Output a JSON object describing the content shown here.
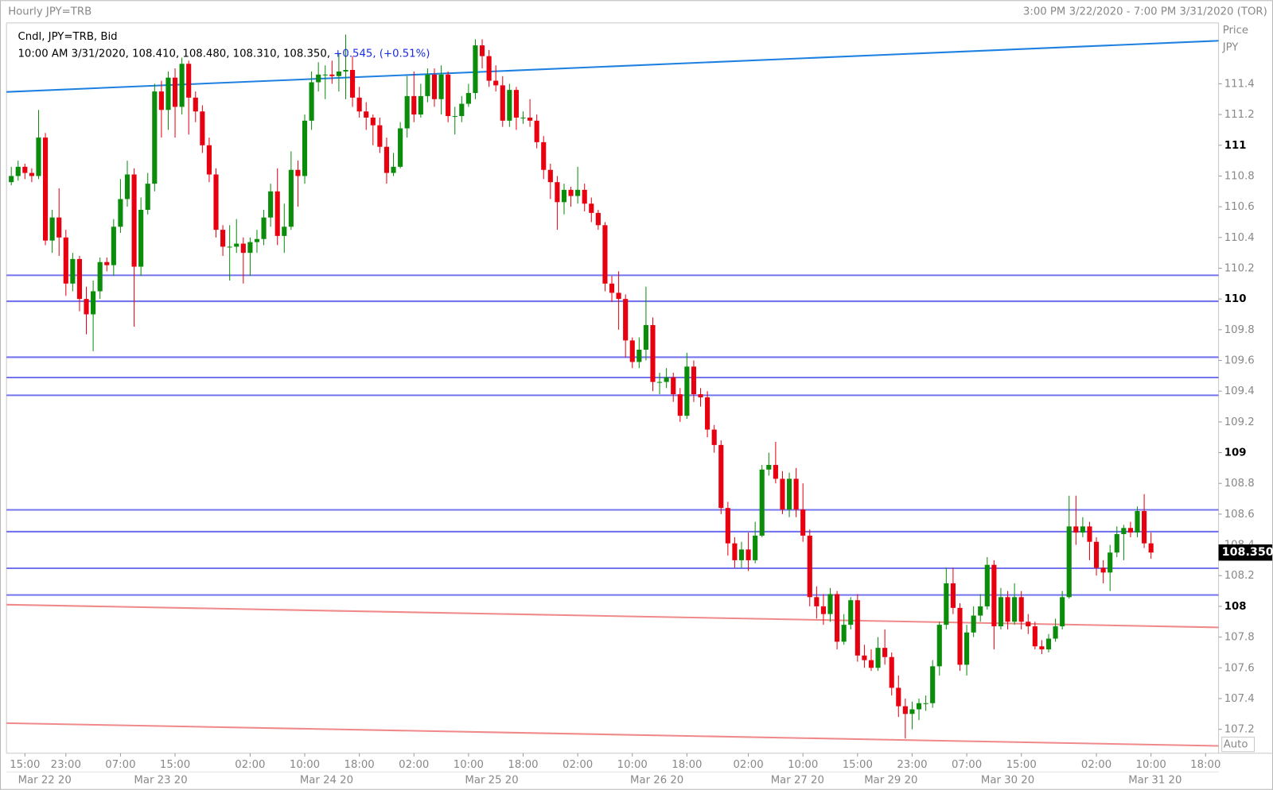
{
  "header": {
    "title": "Hourly JPY=TRB",
    "range": "3:00 PM 3/22/2020 - 7:00 PM 3/31/2020 (TOR)"
  },
  "chart_data": {
    "type": "candlestick",
    "legend": {
      "line1": "Cndl, JPY=TRB, Bid",
      "line2": "10:00 AM 3/31/2020, 108.410, 108.480, 108.310, 108.350,",
      "change": "+0.545, (+0.51%)"
    },
    "axis_title": "Price",
    "axis_unit": "JPY",
    "scale_mode": "Auto",
    "up_color": "#0b8c0b",
    "down_color": "#e80010",
    "xlim": [
      -0.7,
      176.9
    ],
    "ylim": [
      107.044,
      111.796
    ],
    "yticks": [
      107.2,
      107.4,
      107.6,
      107.8,
      108,
      108.2,
      108.4,
      108.6,
      108.8,
      109,
      109.2,
      109.4,
      109.6,
      109.8,
      110,
      110.2,
      110.4,
      110.6,
      110.8,
      111,
      111.2,
      111.4
    ],
    "xticks": [
      {
        "value": 2,
        "label": "15:00"
      },
      {
        "value": 8,
        "label": "23:00"
      },
      {
        "value": 16,
        "label": "07:00"
      },
      {
        "value": 24,
        "label": "15:00"
      },
      {
        "value": 35,
        "label": "02:00"
      },
      {
        "value": 43,
        "label": "10:00"
      },
      {
        "value": 51,
        "label": "18:00"
      },
      {
        "value": 59,
        "label": "02:00"
      },
      {
        "value": 67,
        "label": "10:00"
      },
      {
        "value": 75,
        "label": "18:00"
      },
      {
        "value": 83,
        "label": "02:00"
      },
      {
        "value": 91,
        "label": "10:00"
      },
      {
        "value": 99,
        "label": "18:00"
      },
      {
        "value": 108,
        "label": "02:00"
      },
      {
        "value": 116,
        "label": "10:00"
      },
      {
        "value": 124,
        "label": "15:00"
      },
      {
        "value": 132,
        "label": "23:00"
      },
      {
        "value": 140,
        "label": "07:00"
      },
      {
        "value": 148,
        "label": "15:00"
      },
      {
        "value": 159,
        "label": "02:00"
      },
      {
        "value": 167,
        "label": "10:00"
      },
      {
        "value": 175,
        "label": "18:00"
      }
    ],
    "date_ticks": [
      {
        "value": 4.9,
        "label": "Mar 22 20"
      },
      {
        "value": 21.9,
        "label": "Mar 23 20"
      },
      {
        "value": 46.2,
        "label": "Mar 24 20"
      },
      {
        "value": 70.4,
        "label": "Mar 25 20"
      },
      {
        "value": 94.6,
        "label": "Mar 26 20"
      },
      {
        "value": 115.2,
        "label": "Mar 27 20"
      },
      {
        "value": 128.9,
        "label": "Mar 29 20"
      },
      {
        "value": 146,
        "label": "Mar 30 20"
      },
      {
        "value": 167.6,
        "label": "Mar 31 20"
      }
    ],
    "last_price": {
      "value": 108.35,
      "label": "108.350"
    },
    "hlines": {
      "color": "#7474ee",
      "values": [
        110.154,
        109.985,
        109.621,
        109.489,
        109.373,
        108.628,
        108.486,
        108.248,
        108.074
      ]
    },
    "trendlines": [
      {
        "color": "#1e80e0",
        "x": [
          -0.7,
          176.9
        ],
        "y": [
          111.347,
          111.68
        ]
      },
      {
        "color": "#f08a8a",
        "x": [
          -0.7,
          176.9
        ],
        "y": [
          108.011,
          107.863
        ]
      },
      {
        "color": "#f08a8a",
        "x": [
          -0.7,
          176.9
        ],
        "y": [
          107.24,
          107.092
        ]
      }
    ],
    "open": [
      110.76,
      110.8,
      110.86,
      110.82,
      110.8,
      111.05,
      110.38,
      110.53,
      110.4,
      110.1,
      110.26,
      110.0,
      109.9,
      110.05,
      110.24,
      110.22,
      110.47,
      110.65,
      110.81,
      110.21,
      110.58,
      110.75,
      111.35,
      111.23,
      111.44,
      111.25,
      111.53,
      111.31,
      111.22,
      111.0,
      110.81,
      110.45,
      110.34,
      110.34,
      110.36,
      110.3,
      110.37,
      110.39,
      110.53,
      110.7,
      110.41,
      110.47,
      110.84,
      110.8,
      111.16,
      111.41,
      111.46,
      111.46,
      111.45,
      111.48,
      111.49,
      111.31,
      111.22,
      111.18,
      111.13,
      110.99,
      110.82,
      110.86,
      111.11,
      111.32,
      111.2,
      111.32,
      111.46,
      111.3,
      111.46,
      111.19,
      111.19,
      111.27,
      111.34,
      111.65,
      111.58,
      111.42,
      111.39,
      111.16,
      111.36,
      111.18,
      111.18,
      111.16,
      111.02,
      110.84,
      110.76,
      110.63,
      110.71,
      110.67,
      110.71,
      110.62,
      110.56,
      110.48,
      110.1,
      110.04,
      110.0,
      109.73,
      109.59,
      109.67,
      109.83,
      109.46,
      109.46,
      109.49,
      109.38,
      109.24,
      109.56,
      109.38,
      109.36,
      109.15,
      109.05,
      108.64,
      108.41,
      108.3,
      108.37,
      108.3,
      108.46,
      108.89,
      108.92,
      108.83,
      108.63,
      108.83,
      108.63,
      108.46,
      108.06,
      108.0,
      107.95,
      108.08,
      107.77,
      107.88,
      108.04,
      107.68,
      107.65,
      107.6,
      107.73,
      107.67,
      107.47,
      107.35,
      107.3,
      107.33,
      107.37,
      107.37,
      107.61,
      107.88,
      108.15,
      107.99,
      107.62,
      107.83,
      107.94,
      108.0,
      108.27,
      107.87,
      108.06,
      107.9,
      108.06,
      107.9,
      107.87,
      107.74,
      107.72,
      107.79,
      107.87,
      108.06,
      108.52,
      108.48,
      108.52,
      108.42,
      108.25,
      108.22,
      108.35,
      108.47,
      108.51,
      108.48,
      108.62,
      108.41
    ],
    "high": [
      110.86,
      110.9,
      110.88,
      110.85,
      111.23,
      111.08,
      110.58,
      110.72,
      110.45,
      110.3,
      110.28,
      110.08,
      110.12,
      110.27,
      110.27,
      110.52,
      110.78,
      110.9,
      110.85,
      110.66,
      110.82,
      111.4,
      111.42,
      111.48,
      111.5,
      111.57,
      111.55,
      111.35,
      111.26,
      111.05,
      110.85,
      110.48,
      110.48,
      110.52,
      110.4,
      110.4,
      110.45,
      110.58,
      110.75,
      110.85,
      110.62,
      110.96,
      110.9,
      111.2,
      111.48,
      111.54,
      111.52,
      111.55,
      111.6,
      111.72,
      111.58,
      111.38,
      111.28,
      111.2,
      111.18,
      111.05,
      110.95,
      111.15,
      111.45,
      111.48,
      111.4,
      111.5,
      111.5,
      111.52,
      111.48,
      111.25,
      111.32,
      111.4,
      111.69,
      111.69,
      111.62,
      111.52,
      111.45,
      111.4,
      111.38,
      111.22,
      111.3,
      111.2,
      111.06,
      110.88,
      110.8,
      110.75,
      110.73,
      110.86,
      110.75,
      110.66,
      110.58,
      110.5,
      110.15,
      110.18,
      110.03,
      109.75,
      109.75,
      110.08,
      109.88,
      109.52,
      109.55,
      109.52,
      109.42,
      109.65,
      109.6,
      109.42,
      109.4,
      109.18,
      109.08,
      108.68,
      108.45,
      108.42,
      108.48,
      108.55,
      108.92,
      109.0,
      109.07,
      108.88,
      108.87,
      108.9,
      108.8,
      108.5,
      108.13,
      108.08,
      108.12,
      108.1,
      107.95,
      108.06,
      108.08,
      107.75,
      107.72,
      107.8,
      107.85,
      107.7,
      107.55,
      107.4,
      107.38,
      107.4,
      107.42,
      107.65,
      107.9,
      108.25,
      108.25,
      108.02,
      107.88,
      108.0,
      108.08,
      108.32,
      108.3,
      108.12,
      108.1,
      108.15,
      108.1,
      107.95,
      107.9,
      107.78,
      107.82,
      107.92,
      108.1,
      108.72,
      108.72,
      108.58,
      108.55,
      108.45,
      108.3,
      108.4,
      108.52,
      108.53,
      108.55,
      108.65,
      108.73,
      108.48
    ],
    "low": [
      110.74,
      110.77,
      110.78,
      110.76,
      110.78,
      110.35,
      110.3,
      110.28,
      110.02,
      110.05,
      109.92,
      109.77,
      109.66,
      110.0,
      110.18,
      110.15,
      110.43,
      110.6,
      109.82,
      110.15,
      110.55,
      110.7,
      111.05,
      111.1,
      111.05,
      111.2,
      111.07,
      111.15,
      110.95,
      110.76,
      110.4,
      110.28,
      110.12,
      110.3,
      110.1,
      110.15,
      110.3,
      110.35,
      110.47,
      110.35,
      110.3,
      110.45,
      110.6,
      110.75,
      111.1,
      111.35,
      111.3,
      111.4,
      111.35,
      111.3,
      111.25,
      111.18,
      111.1,
      111.0,
      110.95,
      110.75,
      110.8,
      110.85,
      111.05,
      111.15,
      111.18,
      111.28,
      111.25,
      111.2,
      111.15,
      111.07,
      111.15,
      111.25,
      111.3,
      111.5,
      111.38,
      111.35,
      111.12,
      111.12,
      111.1,
      111.14,
      111.12,
      110.98,
      110.78,
      110.65,
      110.45,
      110.55,
      110.6,
      110.62,
      110.57,
      110.5,
      110.45,
      110.05,
      109.98,
      109.8,
      109.62,
      109.55,
      109.55,
      109.6,
      109.4,
      109.38,
      109.42,
      109.33,
      109.2,
      109.22,
      109.33,
      109.3,
      109.1,
      109.0,
      108.6,
      108.33,
      108.25,
      108.25,
      108.23,
      108.28,
      108.45,
      108.85,
      108.8,
      108.6,
      108.58,
      108.58,
      108.42,
      108.0,
      107.92,
      107.88,
      107.9,
      107.72,
      107.75,
      107.85,
      107.64,
      107.6,
      107.58,
      107.58,
      107.62,
      107.42,
      107.28,
      107.14,
      107.2,
      107.26,
      107.32,
      107.34,
      107.55,
      107.85,
      107.95,
      107.58,
      107.55,
      107.8,
      107.9,
      107.98,
      107.72,
      107.85,
      107.85,
      107.88,
      107.85,
      107.82,
      107.72,
      107.69,
      107.7,
      107.77,
      107.85,
      108.05,
      108.4,
      108.45,
      108.3,
      108.2,
      108.15,
      108.1,
      108.32,
      108.3,
      108.45,
      108.45,
      108.38,
      108.31
    ],
    "close": [
      110.8,
      110.86,
      110.82,
      110.8,
      111.05,
      110.38,
      110.53,
      110.4,
      110.1,
      110.26,
      110.0,
      109.9,
      110.05,
      110.24,
      110.22,
      110.47,
      110.65,
      110.81,
      110.21,
      110.58,
      110.75,
      111.35,
      111.23,
      111.44,
      111.25,
      111.53,
      111.31,
      111.22,
      111.0,
      110.81,
      110.45,
      110.34,
      110.34,
      110.36,
      110.3,
      110.37,
      110.39,
      110.53,
      110.7,
      110.41,
      110.47,
      110.84,
      110.8,
      111.16,
      111.41,
      111.46,
      111.46,
      111.45,
      111.48,
      111.49,
      111.31,
      111.22,
      111.18,
      111.13,
      110.99,
      110.82,
      110.86,
      111.11,
      111.32,
      111.2,
      111.32,
      111.46,
      111.3,
      111.46,
      111.19,
      111.19,
      111.27,
      111.34,
      111.65,
      111.58,
      111.42,
      111.39,
      111.16,
      111.36,
      111.18,
      111.18,
      111.16,
      111.02,
      110.84,
      110.76,
      110.63,
      110.71,
      110.67,
      110.71,
      110.62,
      110.56,
      110.48,
      110.1,
      110.04,
      110.0,
      109.73,
      109.59,
      109.67,
      109.83,
      109.46,
      109.46,
      109.49,
      109.38,
      109.24,
      109.56,
      109.38,
      109.36,
      109.15,
      109.05,
      108.64,
      108.41,
      108.3,
      108.37,
      108.3,
      108.46,
      108.89,
      108.92,
      108.83,
      108.63,
      108.83,
      108.63,
      108.46,
      108.06,
      108.0,
      107.95,
      108.08,
      107.77,
      107.88,
      108.04,
      107.68,
      107.65,
      107.6,
      107.73,
      107.67,
      107.47,
      107.35,
      107.3,
      107.33,
      107.37,
      107.37,
      107.61,
      107.88,
      108.15,
      107.99,
      107.62,
      107.83,
      107.94,
      108.0,
      108.27,
      107.87,
      108.06,
      107.9,
      108.06,
      107.9,
      107.87,
      107.74,
      107.72,
      107.79,
      107.87,
      108.06,
      108.52,
      108.48,
      108.52,
      108.42,
      108.25,
      108.22,
      108.35,
      108.47,
      108.51,
      108.48,
      108.62,
      108.41,
      108.35
    ]
  }
}
